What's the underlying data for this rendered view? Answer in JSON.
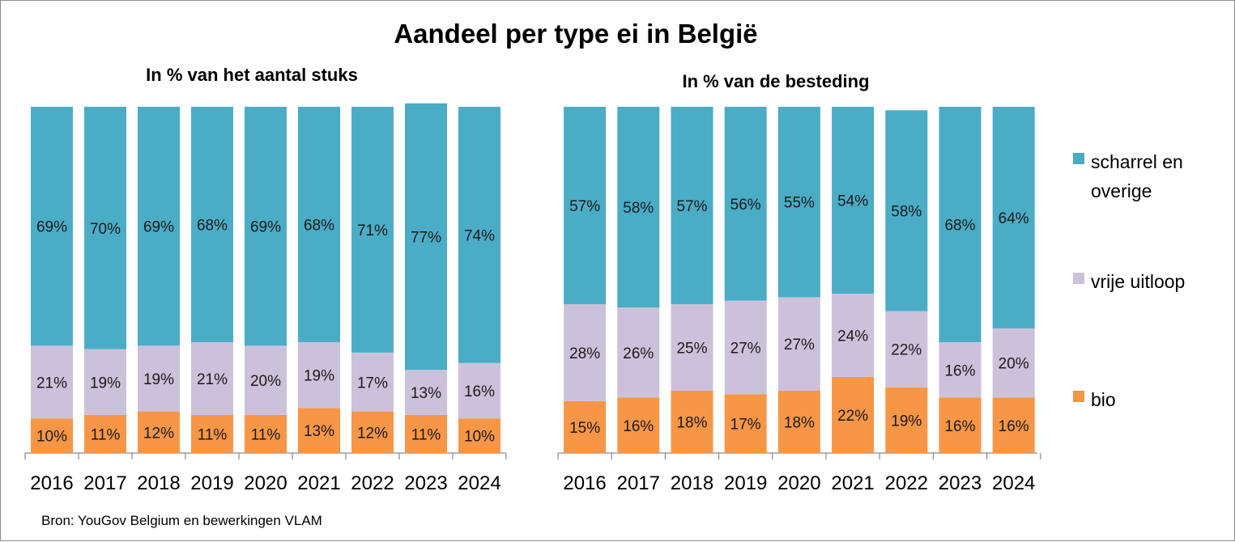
{
  "title": "Aandeel per type ei in België",
  "source": "Bron: YouGov Belgium en bewerkingen VLAM",
  "colors": {
    "bio": "#F79646",
    "vrije_uitloop": "#CCC1DA",
    "scharrel": "#4BACC6"
  },
  "legend": [
    {
      "key": "scharrel",
      "lines": [
        "scharrel en",
        "overige"
      ]
    },
    {
      "key": "vrije_uitloop",
      "lines": [
        "vrije uitloop"
      ]
    },
    {
      "key": "bio",
      "lines": [
        "bio"
      ]
    }
  ],
  "chart_data": [
    {
      "type": "bar",
      "stacked": "percent",
      "title": "In % van het aantal stuks",
      "categories": [
        "2016",
        "2017",
        "2018",
        "2019",
        "2020",
        "2021",
        "2022",
        "2023",
        "2024"
      ],
      "ylim": [
        0,
        100
      ],
      "series": [
        {
          "name": "bio",
          "key": "bio",
          "values": [
            10,
            11,
            12,
            11,
            11,
            13,
            12,
            11,
            10
          ]
        },
        {
          "name": "vrije uitloop",
          "key": "vrije_uitloop",
          "values": [
            21,
            19,
            19,
            21,
            20,
            19,
            17,
            13,
            16
          ]
        },
        {
          "name": "scharrel en overige",
          "key": "scharrel",
          "values": [
            69,
            70,
            69,
            68,
            69,
            68,
            71,
            77,
            74
          ]
        }
      ]
    },
    {
      "type": "bar",
      "stacked": "percent",
      "title": "In % van de besteding",
      "categories": [
        "2016",
        "2017",
        "2018",
        "2019",
        "2020",
        "2021",
        "2022",
        "2023",
        "2024"
      ],
      "ylim": [
        0,
        100
      ],
      "series": [
        {
          "name": "bio",
          "key": "bio",
          "values": [
            15,
            16,
            18,
            17,
            18,
            22,
            19,
            16,
            16
          ]
        },
        {
          "name": "vrije uitloop",
          "key": "vrije_uitloop",
          "values": [
            28,
            26,
            25,
            27,
            27,
            24,
            22,
            16,
            20
          ]
        },
        {
          "name": "scharrel en overige",
          "key": "scharrel",
          "values": [
            57,
            58,
            57,
            56,
            55,
            54,
            58,
            68,
            64
          ]
        }
      ]
    }
  ]
}
